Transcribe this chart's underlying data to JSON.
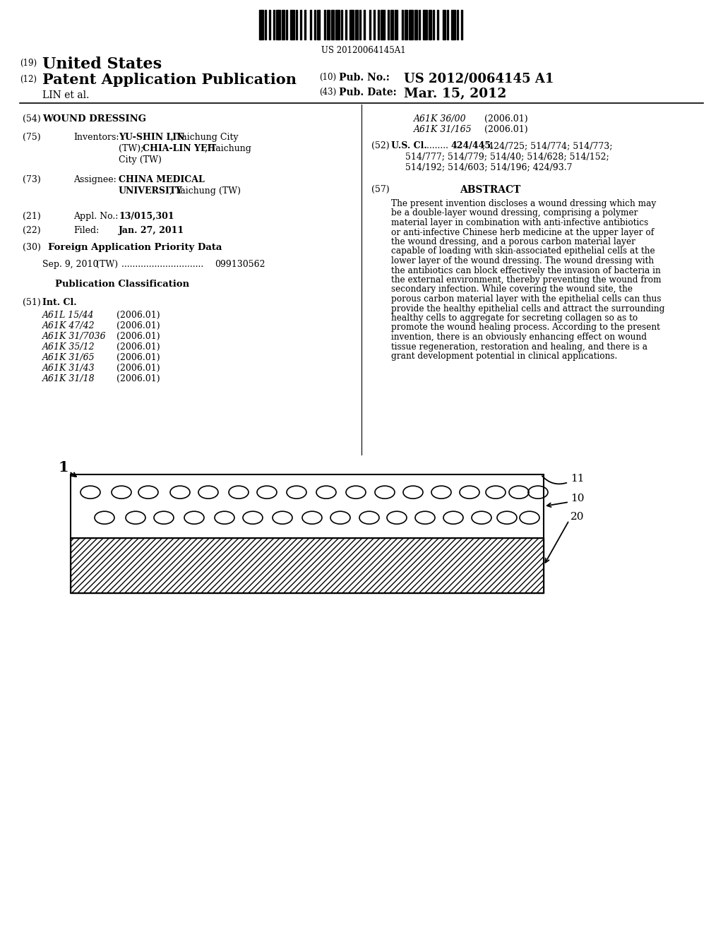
{
  "background_color": "#ffffff",
  "barcode_text": "US 20120064145A1",
  "int_cl": [
    [
      "A61L 15/44",
      "(2006.01)"
    ],
    [
      "A61K 47/42",
      "(2006.01)"
    ],
    [
      "A61K 31/7036",
      "(2006.01)"
    ],
    [
      "A61K 35/12",
      "(2006.01)"
    ],
    [
      "A61K 31/65",
      "(2006.01)"
    ],
    [
      "A61K 31/43",
      "(2006.01)"
    ],
    [
      "A61K 31/18",
      "(2006.01)"
    ]
  ],
  "int_cl_right": [
    [
      "A61K 36/00",
      "(2006.01)"
    ],
    [
      "A61K 31/165",
      "(2006.01)"
    ]
  ],
  "abstract_lines": [
    "The present invention discloses a wound dressing which may",
    "be a double-layer wound dressing, comprising a polymer",
    "material layer in combination with anti-infective antibiotics",
    "or anti-infective Chinese herb medicine at the upper layer of",
    "the wound dressing, and a porous carbon material layer",
    "capable of loading with skin-associated epithelial cells at the",
    "lower layer of the wound dressing. The wound dressing with",
    "the antibiotics can block effectively the invasion of bacteria in",
    "the external environment, thereby preventing the wound from",
    "secondary infection. While covering the wound site, the",
    "porous carbon material layer with the epithelial cells can thus",
    "provide the healthy epithelial cells and attract the surrounding",
    "healthy cells to aggregate for secreting collagen so as to",
    "promote the wound healing process. According to the present",
    "invention, there is an obviously enhancing effect on wound",
    "tissue regeneration, restoration and healing, and there is a",
    "grant development potential in clinical applications."
  ]
}
